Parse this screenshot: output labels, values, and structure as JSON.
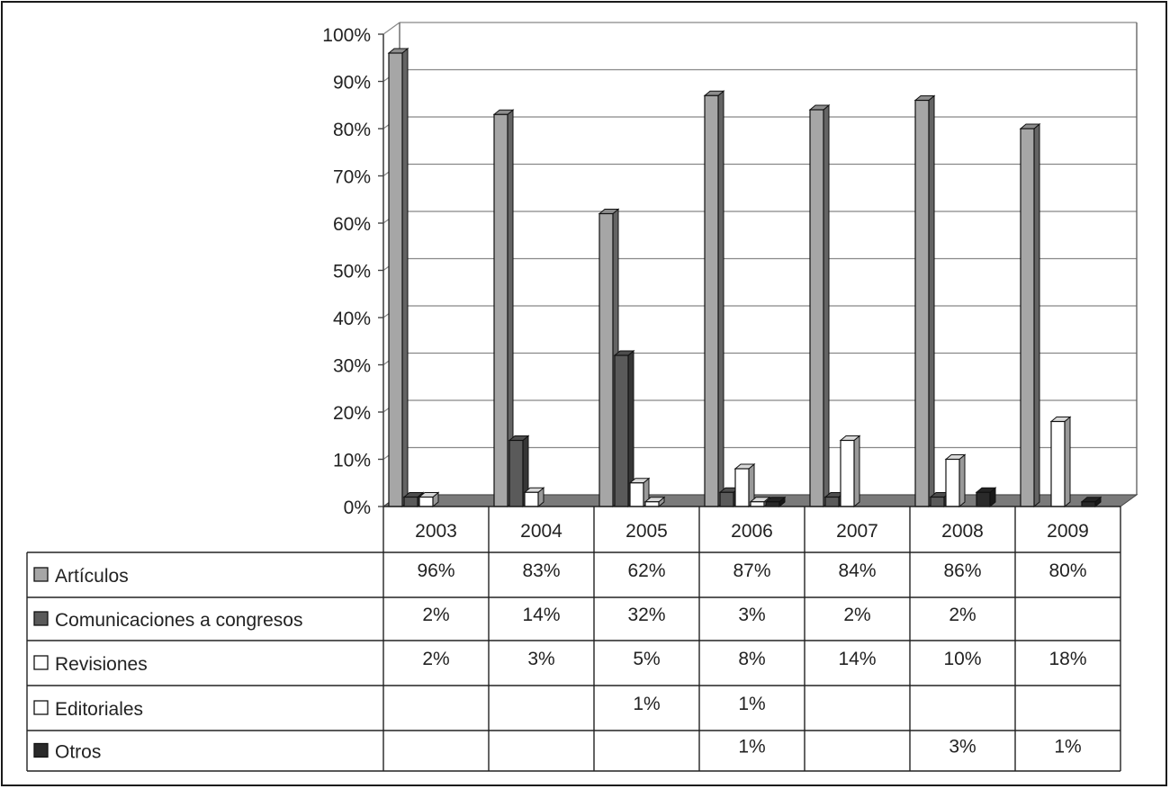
{
  "chart_data": {
    "type": "bar",
    "categories": [
      "2003",
      "2004",
      "2005",
      "2006",
      "2007",
      "2008",
      "2009"
    ],
    "ylim": [
      0,
      100
    ],
    "yticks": [
      "0%",
      "10%",
      "20%",
      "30%",
      "40%",
      "50%",
      "60%",
      "70%",
      "80%",
      "90%",
      "100%"
    ],
    "grid": true,
    "legend_placement": "data-table-rows",
    "series": [
      {
        "name": "Artículos",
        "color": "#a6a6a6",
        "values": [
          96,
          83,
          62,
          87,
          84,
          86,
          80
        ],
        "labels": [
          "96%",
          "83%",
          "62%",
          "87%",
          "84%",
          "86%",
          "80%"
        ]
      },
      {
        "name": "Comunicaciones a congresos",
        "color": "#5a5a5a",
        "values": [
          2,
          14,
          32,
          3,
          2,
          2,
          null
        ],
        "labels": [
          "2%",
          "14%",
          "32%",
          "3%",
          "2%",
          "2%",
          ""
        ]
      },
      {
        "name": "Revisiones",
        "color": "#ffffff",
        "values": [
          2,
          3,
          5,
          8,
          14,
          10,
          18
        ],
        "labels": [
          "2%",
          "3%",
          "5%",
          "8%",
          "14%",
          "10%",
          "18%"
        ]
      },
      {
        "name": "Editoriales",
        "color": "#ffffff",
        "values": [
          null,
          null,
          1,
          1,
          null,
          null,
          null
        ],
        "labels": [
          "",
          "",
          "1%",
          "1%",
          "",
          "",
          ""
        ]
      },
      {
        "name": "Otros",
        "color": "#2a2a2a",
        "values": [
          null,
          null,
          null,
          1,
          null,
          3,
          1
        ],
        "labels": [
          "",
          "",
          "",
          "1%",
          "",
          "3%",
          "1%"
        ]
      }
    ]
  }
}
